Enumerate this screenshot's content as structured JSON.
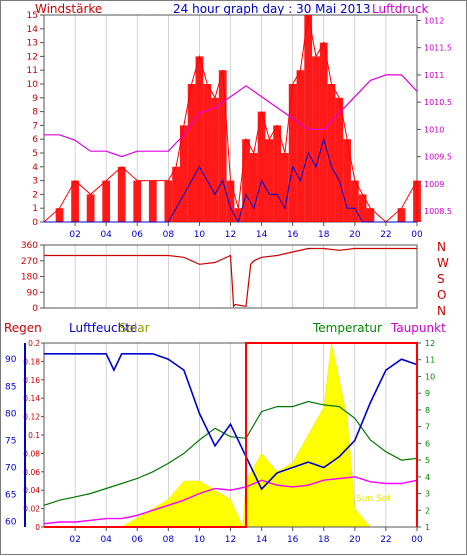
{
  "header": {
    "title": "24 hour graph day : 30 Mai 2013",
    "left_label": "Windstärke",
    "right_label": "Luftdruck"
  },
  "colors": {
    "wind": "#ff0000",
    "gust_line": "#0000cc",
    "pressure": "#dd00dd",
    "direction": "#cc0000",
    "rain": "#ff0000",
    "humidity": "#0000cc",
    "solar": "#ffff00",
    "temperature": "#007700",
    "dewpoint": "#ff00ff",
    "axis_red": "#cc0000",
    "axis_magenta": "#cc00cc",
    "axis_blue": "#0000cc",
    "axis_green": "#008800",
    "grid": "#b8b8b8"
  },
  "compass": [
    "N",
    "W",
    "S",
    "O",
    "N"
  ],
  "bottom_labels": {
    "rain": "Regen",
    "humidity": "Luftfeuchte",
    "solar": "Solar",
    "temperature": "Temperatur",
    "dewpoint": "Taupunkt"
  },
  "annotations": {
    "sunrise_label": "",
    "sunset_label": "Sun Set"
  },
  "chart_data": [
    {
      "type": "line",
      "title": "24 hour graph day : 30 Mai 2013",
      "x_tick_labels": [
        "02",
        "04",
        "06",
        "08",
        "10",
        "12",
        "14",
        "16",
        "18",
        "20",
        "22",
        "00"
      ],
      "left_axis": {
        "label": "Windstärke",
        "ticks": [
          0,
          1,
          2,
          3,
          4,
          5,
          6,
          7,
          8,
          9,
          10,
          11,
          12,
          13,
          14,
          15
        ],
        "ylim": [
          0,
          15
        ]
      },
      "right_axis": {
        "label": "Luftdruck",
        "ticks": [
          "1008.5",
          "1009",
          "1009.5",
          "1010",
          "1010.5",
          "1011",
          "1011.5",
          "1012"
        ],
        "ylim": [
          1008.3,
          1012.1
        ]
      },
      "series": [
        {
          "name": "Windstärke",
          "x": [
            0,
            1,
            2,
            3,
            4,
            5,
            6,
            7,
            8,
            8.5,
            9,
            9.5,
            10,
            10.5,
            11,
            11.5,
            12,
            12.5,
            13,
            13.5,
            14,
            14.5,
            15,
            15.5,
            16,
            16.5,
            17,
            17.5,
            18,
            18.5,
            19,
            19.5,
            20,
            20.5,
            21,
            22,
            23,
            24
          ],
          "values": [
            0,
            1,
            3,
            2,
            3,
            4,
            3,
            3,
            3,
            4,
            7,
            10,
            12,
            10,
            9,
            11,
            3,
            1,
            6,
            5,
            8,
            6,
            7,
            5,
            10,
            11,
            15,
            12,
            13,
            10,
            9,
            6,
            3,
            2,
            1,
            0,
            1,
            3
          ]
        },
        {
          "name": "",
          "x": [
            0,
            1,
            2,
            3,
            4,
            5,
            6,
            7,
            8,
            8.5,
            9,
            9.5,
            10,
            10.5,
            11,
            11.5,
            12,
            12.5,
            13,
            13.5,
            14,
            14.5,
            15,
            15.5,
            16,
            16.5,
            17,
            17.5,
            18,
            18.5,
            19,
            19.5,
            20,
            20.5,
            21,
            22,
            23,
            24
          ],
          "values": [
            0,
            0,
            0,
            0,
            0,
            0,
            0,
            0,
            0,
            1,
            2,
            3,
            4,
            3,
            2,
            3,
            1,
            0,
            2,
            1,
            3,
            2,
            2,
            1,
            4,
            3,
            5,
            4,
            6,
            4,
            3,
            1,
            1,
            0,
            0,
            0,
            0,
            0
          ]
        },
        {
          "name": "Luftdruck",
          "x": [
            0,
            1,
            2,
            3,
            4,
            5,
            6,
            7,
            8,
            9,
            10,
            11,
            12,
            13,
            14,
            15,
            16,
            17,
            18,
            19,
            20,
            21,
            22,
            23,
            24
          ],
          "values": [
            1009.9,
            1009.9,
            1009.8,
            1009.6,
            1009.6,
            1009.5,
            1009.6,
            1009.6,
            1009.6,
            1009.9,
            1010.3,
            1010.4,
            1010.6,
            1010.8,
            1010.6,
            1010.4,
            1010.2,
            1010.0,
            1010.0,
            1010.3,
            1010.6,
            1010.9,
            1011.0,
            1011.0,
            1010.7
          ]
        }
      ]
    },
    {
      "type": "line",
      "title": "",
      "x_tick_labels": [],
      "left_axis": {
        "ticks": [
          0,
          90,
          180,
          270,
          360
        ],
        "ylim": [
          0,
          360
        ]
      },
      "series": [
        {
          "name": "",
          "x": [
            0,
            2,
            4,
            6,
            8,
            9,
            10,
            11,
            12,
            12.2,
            12.3,
            13,
            13.3,
            13.5,
            14,
            15,
            16,
            17,
            18,
            19,
            20,
            22,
            24
          ],
          "values": [
            300,
            300,
            300,
            300,
            300,
            290,
            250,
            260,
            300,
            10,
            20,
            10,
            250,
            270,
            290,
            300,
            320,
            340,
            340,
            330,
            340,
            340,
            340
          ]
        }
      ]
    },
    {
      "type": "line",
      "title": "",
      "x_tick_labels": [
        "02",
        "04",
        "06",
        "08",
        "10",
        "12",
        "14",
        "16",
        "18",
        "20",
        "22",
        "00"
      ],
      "left_axis_rain": {
        "label": "Regen",
        "ticks": [
          "0",
          "0.02",
          "0.04",
          "0.06",
          "0.08",
          "0.1",
          "0.12",
          "0.14",
          "0.16",
          "0.18",
          "0.2"
        ],
        "ylim": [
          0,
          0.2
        ]
      },
      "left_axis_humidity": {
        "label": "Luftfeuchte",
        "ticks": [
          "60",
          "65",
          "70",
          "75",
          "80",
          "85",
          "90"
        ],
        "ylim": [
          59,
          93
        ]
      },
      "right_axis": {
        "label": "Temperatur",
        "ticks": [
          "1",
          "2",
          "3",
          "4",
          "5",
          "6",
          "7",
          "8",
          "9",
          "10",
          "11",
          "12"
        ],
        "ylim": [
          1,
          12
        ]
      },
      "series": [
        {
          "name": "Regen",
          "x": [
            0,
            13,
            13,
            24,
            24
          ],
          "values": [
            0,
            0,
            0.2,
            0.2,
            0
          ]
        },
        {
          "name": "Luftfeuchte",
          "x": [
            0,
            1,
            2,
            3,
            4,
            4.5,
            5,
            6,
            7,
            8,
            9,
            10,
            11,
            12,
            13,
            14,
            15,
            16,
            17,
            18,
            19,
            20,
            21,
            22,
            23,
            24
          ],
          "values": [
            91,
            91,
            91,
            91,
            91,
            88,
            91,
            91,
            91,
            90,
            88,
            80,
            74,
            78,
            72,
            66,
            69,
            70,
            71,
            70,
            72,
            75,
            82,
            88,
            90,
            89
          ]
        },
        {
          "name": "Solar",
          "x": [
            0,
            5,
            6,
            7,
            8,
            9,
            10,
            11,
            12,
            12.8,
            13,
            14,
            15,
            16,
            17,
            18,
            18.5,
            19,
            19.5,
            20,
            21,
            24
          ],
          "values": [
            0,
            0,
            0.01,
            0.02,
            0.03,
            0.05,
            0.05,
            0.04,
            0.03,
            0,
            0.05,
            0.08,
            0.06,
            0.07,
            0.1,
            0.13,
            0.2,
            0.16,
            0.12,
            0.02,
            0,
            0
          ]
        },
        {
          "name": "Temperatur",
          "x": [
            0,
            1,
            2,
            3,
            4,
            5,
            6,
            7,
            8,
            9,
            10,
            11,
            12,
            13,
            14,
            15,
            16,
            17,
            18,
            19,
            20,
            21,
            22,
            23,
            24
          ],
          "values": [
            2.3,
            2.6,
            2.8,
            3.0,
            3.3,
            3.6,
            3.9,
            4.3,
            4.8,
            5.4,
            6.2,
            6.9,
            6.4,
            6.3,
            7.9,
            8.2,
            8.2,
            8.5,
            8.3,
            8.2,
            7.5,
            6.2,
            5.5,
            5.0,
            5.1
          ]
        },
        {
          "name": "Taupunkt",
          "x": [
            0,
            1,
            2,
            3,
            4,
            5,
            6,
            7,
            8,
            9,
            10,
            11,
            12,
            13,
            14,
            15,
            16,
            17,
            18,
            19,
            20,
            21,
            22,
            23,
            24
          ],
          "values": [
            1.2,
            1.3,
            1.3,
            1.4,
            1.5,
            1.5,
            1.7,
            2.0,
            2.3,
            2.6,
            3.0,
            3.3,
            3.2,
            3.4,
            3.8,
            3.5,
            3.4,
            3.5,
            3.8,
            3.9,
            4.0,
            3.7,
            3.6,
            3.6,
            3.8
          ]
        }
      ]
    }
  ]
}
